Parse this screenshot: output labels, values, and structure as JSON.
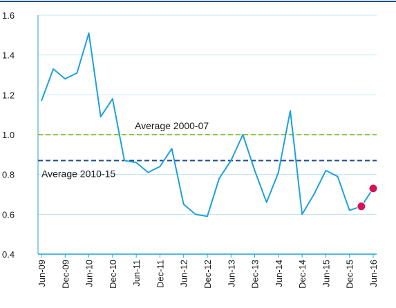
{
  "chart_data": {
    "type": "line",
    "categories": [
      "Jun-09",
      null,
      "Dec-09",
      null,
      "Jun-10",
      null,
      "Dec-10",
      null,
      "Jun-11",
      null,
      "Dec-11",
      null,
      "Jun-12",
      null,
      "Dec-12",
      null,
      "Jun-13",
      null,
      "Dec-13",
      null,
      "Jun-14",
      null,
      "Dec-14",
      null,
      "Jun-15",
      null,
      "Dec-15",
      null,
      "Jun-16"
    ],
    "values": [
      1.17,
      1.33,
      1.28,
      1.31,
      1.51,
      1.09,
      1.18,
      0.87,
      0.86,
      0.81,
      0.84,
      0.93,
      0.65,
      0.6,
      0.59,
      0.78,
      0.87,
      1.0,
      0.82,
      0.66,
      0.81,
      1.12,
      0.6,
      0.7,
      0.82,
      0.79,
      0.62,
      0.64,
      0.73
    ],
    "color": "#1ea0dc",
    "highlight": {
      "color": "#d4145a",
      "values": [
        null,
        null,
        null,
        null,
        null,
        null,
        null,
        null,
        null,
        null,
        null,
        null,
        null,
        null,
        null,
        null,
        null,
        null,
        null,
        null,
        null,
        null,
        null,
        null,
        null,
        null,
        null,
        0.64,
        0.73
      ]
    },
    "reference_lines": [
      {
        "label": "Average 2000-07",
        "value": 1.0,
        "color": "#8cc63f"
      },
      {
        "label": "Average 2010-15",
        "value": 0.87,
        "color": "#1f4e8c"
      }
    ],
    "ylim": [
      0.4,
      1.6
    ],
    "yticks": [
      0.4,
      0.6,
      0.8,
      1.0,
      1.2,
      1.4,
      1.6
    ],
    "grid": true
  }
}
